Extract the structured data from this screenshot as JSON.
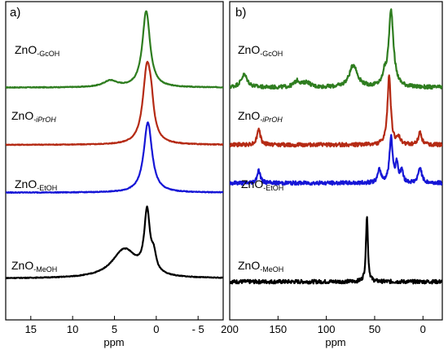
{
  "chart_data": [
    {
      "type": "line",
      "panel_label": "a)",
      "xlabel": "ppm",
      "xlim": [
        18,
        -8
      ],
      "x_reversed": true,
      "x_ticks": [
        15,
        10,
        5,
        0,
        -5
      ],
      "x_tick_labels": [
        "15",
        "10",
        "5",
        "0",
        "- 5"
      ],
      "series": [
        {
          "name": "ZnO",
          "name_sub": "-GcOH",
          "color": "#2e7d1f",
          "baseline": 0.73,
          "peaks": [
            {
              "x": 1.2,
              "w": 0.55,
              "h": 0.24
            },
            {
              "x": 5.5,
              "w": 1.0,
              "h": 0.02
            }
          ]
        },
        {
          "name": "ZnO",
          "name_sub": "-iPrOH",
          "color": "#b52a14",
          "baseline": 0.55,
          "peaks": [
            {
              "x": 1.1,
              "w": 0.6,
              "h": 0.24
            },
            {
              "x": 0.6,
              "w": 0.35,
              "h": 0.06
            }
          ]
        },
        {
          "name": "ZnO",
          "name_sub": "-EtOH",
          "color": "#1515d6",
          "baseline": 0.4,
          "peaks": [
            {
              "x": 1.0,
              "w": 0.6,
              "h": 0.22
            }
          ]
        },
        {
          "name": "ZnO",
          "name_sub": "-MeOH",
          "color": "#000000",
          "baseline": 0.13,
          "peaks": [
            {
              "x": 1.1,
              "w": 0.4,
              "h": 0.19
            },
            {
              "x": 3.8,
              "w": 1.8,
              "h": 0.09
            },
            {
              "x": 0.3,
              "w": 0.35,
              "h": 0.05
            }
          ]
        }
      ]
    },
    {
      "type": "line",
      "panel_label": "b)",
      "xlabel": "ppm",
      "xlim": [
        200,
        -20
      ],
      "x_reversed": true,
      "x_ticks": [
        200,
        150,
        100,
        50,
        0
      ],
      "x_tick_labels": [
        "200",
        "150",
        "100",
        "50",
        "0"
      ],
      "series": [
        {
          "name": "ZnO",
          "name_sub": "-GcOH",
          "color": "#2e7d1f",
          "baseline": 0.73,
          "peaks": [
            {
              "x": 33,
              "w": 3,
              "h": 0.24
            },
            {
              "x": 72,
              "w": 5,
              "h": 0.07
            },
            {
              "x": 185,
              "w": 4,
              "h": 0.04
            },
            {
              "x": 130,
              "w": 4,
              "h": 0.02
            },
            {
              "x": 120,
              "w": 4,
              "h": 0.015
            },
            {
              "x": 40,
              "w": 2,
              "h": 0.03
            }
          ]
        },
        {
          "name": "ZnO",
          "name_sub": "-iPrOH",
          "color": "#b52a14",
          "baseline": 0.55,
          "peaks": [
            {
              "x": 35,
              "w": 2,
              "h": 0.22
            },
            {
              "x": 170,
              "w": 2,
              "h": 0.05
            },
            {
              "x": 3,
              "w": 2,
              "h": 0.04
            },
            {
              "x": 25,
              "w": 2,
              "h": 0.02
            }
          ]
        },
        {
          "name": "ZnO",
          "name_sub": "-EtOH",
          "color": "#1515d6",
          "baseline": 0.43,
          "peaks": [
            {
              "x": 33,
              "w": 2,
              "h": 0.14
            },
            {
              "x": 27,
              "w": 1.5,
              "h": 0.06
            },
            {
              "x": 22,
              "w": 1.5,
              "h": 0.04
            },
            {
              "x": 3,
              "w": 2,
              "h": 0.05
            },
            {
              "x": 45,
              "w": 2,
              "h": 0.04
            },
            {
              "x": 170,
              "w": 2,
              "h": 0.04
            }
          ]
        },
        {
          "name": "ZnO",
          "name_sub": "-MeOH",
          "color": "#000000",
          "baseline": 0.12,
          "peaks": [
            {
              "x": 58,
              "w": 1.2,
              "h": 0.21
            }
          ]
        }
      ]
    }
  ]
}
